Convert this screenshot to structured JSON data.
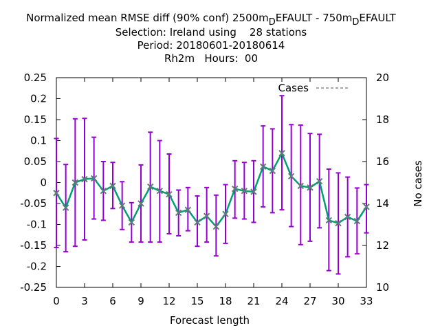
{
  "chart_data": {
    "type": "line",
    "title": {
      "line1_prefix": "Normalized mean RMSE diff (90% conf) 2500m",
      "line1_sub1": "D",
      "line1_mid": "EFAULT - 750m",
      "line1_sub2": "D",
      "line1_suffix": "EFAULT",
      "line2": "Selection: Ireland using    28 stations",
      "line3": "Period: 20180601-20180614",
      "line4": "Rh2m   Hours:  00"
    },
    "xlabel": "Forecast length",
    "ylabel_right": "No cases",
    "xlim": [
      0,
      33
    ],
    "ylim": [
      -0.25,
      0.25
    ],
    "y2lim": [
      10,
      20
    ],
    "x_ticks": [
      0,
      3,
      6,
      9,
      12,
      15,
      18,
      21,
      24,
      27,
      30,
      33
    ],
    "y_ticks": [
      0.25,
      0.2,
      0.15,
      0.1,
      0.05,
      0,
      -0.05,
      -0.1,
      -0.15,
      -0.2,
      -0.25
    ],
    "y_tick_labels": [
      "0.25",
      "0.2",
      "0.15",
      "0.1",
      "0.05",
      "0",
      "-0.05",
      "-0.1",
      "-0.15",
      "-0.2",
      "-0.25"
    ],
    "y2_ticks": [
      20,
      18,
      16,
      14,
      12,
      10
    ],
    "legend": {
      "label": "Cases",
      "position": "top-right",
      "color": "#888888"
    },
    "colors": {
      "errorbar": "#9400d3",
      "line": "#009e73",
      "marker": "#607878"
    },
    "x": [
      0,
      1,
      2,
      3,
      4,
      5,
      6,
      7,
      8,
      9,
      10,
      11,
      12,
      13,
      14,
      15,
      16,
      17,
      18,
      19,
      20,
      21,
      22,
      23,
      24,
      25,
      26,
      27,
      28,
      29,
      30,
      31,
      32,
      33
    ],
    "mean": [
      -0.025,
      -0.06,
      0,
      0.008,
      0.01,
      -0.02,
      -0.008,
      -0.055,
      -0.095,
      -0.05,
      -0.01,
      -0.02,
      -0.028,
      -0.072,
      -0.065,
      -0.095,
      -0.08,
      -0.105,
      -0.075,
      -0.015,
      -0.02,
      -0.022,
      0.038,
      0.028,
      0.07,
      0.015,
      -0.008,
      -0.012,
      0.003,
      -0.09,
      -0.097,
      -0.082,
      -0.092,
      -0.058
    ],
    "lower": [
      -0.155,
      -0.165,
      -0.152,
      -0.137,
      -0.087,
      -0.09,
      -0.062,
      -0.112,
      -0.142,
      -0.142,
      -0.142,
      -0.142,
      -0.122,
      -0.127,
      -0.115,
      -0.152,
      -0.142,
      -0.175,
      -0.145,
      -0.085,
      -0.087,
      -0.095,
      -0.058,
      -0.072,
      -0.065,
      -0.105,
      -0.148,
      -0.14,
      -0.108,
      -0.21,
      -0.218,
      -0.177,
      -0.17,
      -0.12
    ],
    "upper": [
      0.105,
      0.043,
      0.152,
      0.153,
      0.108,
      0.05,
      0.048,
      0.002,
      -0.048,
      0.042,
      0.12,
      0.1,
      0.068,
      -0.018,
      -0.012,
      -0.032,
      -0.012,
      -0.03,
      -0.005,
      0.052,
      0.048,
      0.052,
      0.135,
      0.128,
      0.207,
      0.138,
      0.137,
      0.117,
      0.115,
      0.032,
      0.023,
      0.013,
      -0.013,
      -0.005
    ]
  }
}
